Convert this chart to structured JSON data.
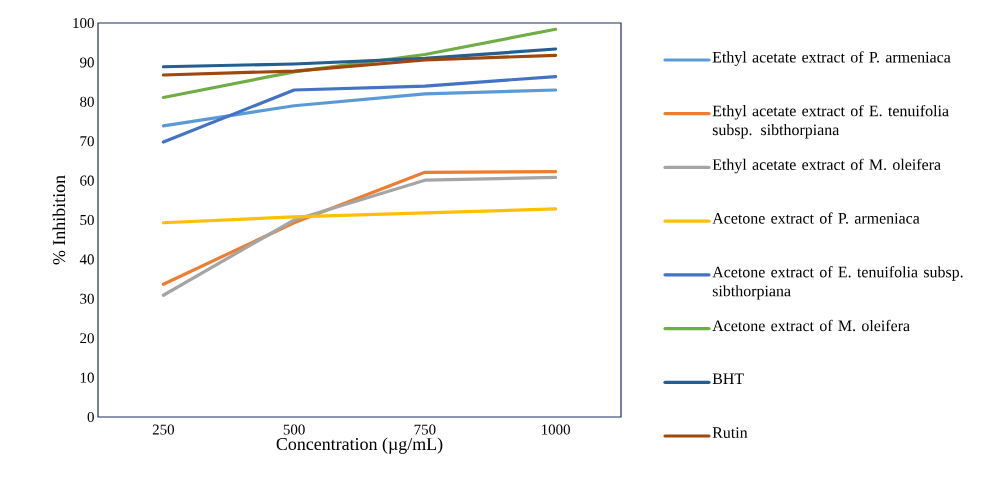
{
  "chart_data": {
    "type": "line",
    "xlabel": "Concentration (µg/mL)",
    "ylabel": "% Inhibition",
    "categories": [
      "250",
      "500",
      "750",
      "1000"
    ],
    "series": [
      {
        "name": "Ethyl acetate extract of P. armeniaca",
        "color": "#5b9bd5",
        "values": [
          73.9,
          79.0,
          82.0,
          83.0
        ]
      },
      {
        "name": "Ethyl acetate extract of E. tenuifolia subsp. sibthorpiana",
        "color": "#ed7d31",
        "values": [
          33.7,
          49.3,
          62.1,
          62.3
        ]
      },
      {
        "name": "Ethyl acetate extract of M. oleifera",
        "color": "#a5a5a5",
        "values": [
          30.9,
          50.0,
          60.1,
          60.8
        ]
      },
      {
        "name": "Acetone extract of P. armeniaca",
        "color": "#ffc000",
        "values": [
          49.3,
          50.8,
          51.8,
          52.8
        ]
      },
      {
        "name": "Acetone extract of E. tenuifolia subsp. sibthorpiana",
        "color": "#4472c4",
        "values": [
          69.8,
          83.0,
          84.0,
          86.4
        ]
      },
      {
        "name": "Acetone extract of M. oleifera",
        "color": "#70ad47",
        "values": [
          81.1,
          87.6,
          92.0,
          98.4
        ]
      },
      {
        "name": "BHT",
        "color": "#255e91",
        "values": [
          88.9,
          89.6,
          91.0,
          93.4
        ]
      },
      {
        "name": "Rutin",
        "color": "#9e480e",
        "values": [
          86.8,
          87.8,
          90.6,
          91.8
        ]
      }
    ],
    "ylim": [
      0,
      100
    ],
    "yticks": [
      0,
      10,
      20,
      30,
      40,
      50,
      60,
      70,
      80,
      90,
      100
    ],
    "legend": "right",
    "marker": "none",
    "line_style": "solid"
  }
}
